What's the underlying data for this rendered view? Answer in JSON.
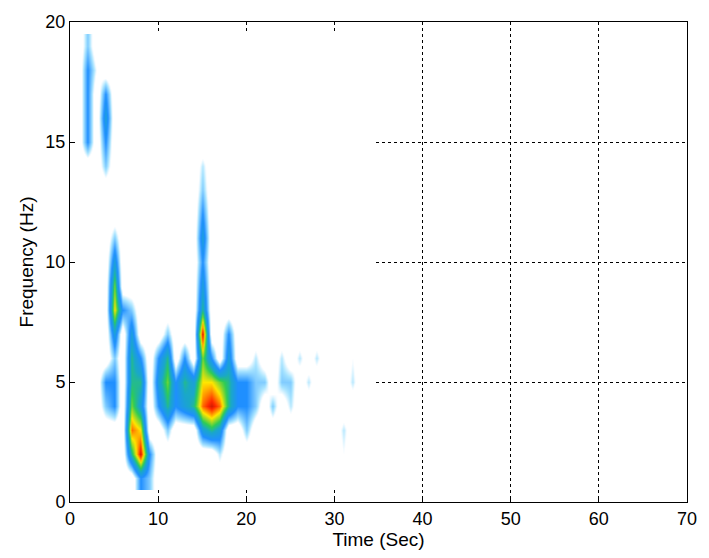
{
  "chart_data": {
    "type": "heatmap",
    "x_label": "Time (Sec)",
    "y_label": "Frequency (Hz)",
    "xlim": [
      0,
      70
    ],
    "ylim": [
      0,
      20
    ],
    "xticks": [
      0,
      10,
      20,
      30,
      40,
      50,
      60,
      70
    ],
    "yticks": [
      0,
      5,
      10,
      15,
      20
    ],
    "grid": true,
    "zlim": [
      0,
      1
    ],
    "cells": {
      "x": [
        1,
        2,
        3,
        4,
        5,
        6,
        7,
        8,
        9,
        10,
        11,
        12,
        13,
        14,
        15,
        16,
        17,
        18,
        19,
        20,
        21,
        22,
        23,
        24,
        25,
        26,
        27,
        28,
        29,
        30,
        31,
        32,
        33,
        34
      ],
      "y": [
        1,
        2,
        3,
        4,
        5,
        6,
        7,
        8,
        9,
        10,
        11,
        12,
        13,
        14,
        15,
        16,
        17,
        18,
        19
      ],
      "z": [
        [
          0,
          0,
          0,
          0,
          0,
          0,
          0,
          0.3,
          0.2,
          0,
          0,
          0,
          0,
          0,
          0,
          0,
          0,
          0,
          0,
          0,
          0,
          0,
          0,
          0,
          0,
          0,
          0,
          0,
          0,
          0,
          0,
          0,
          0,
          0
        ],
        [
          0,
          0,
          0,
          0,
          0,
          0,
          0.5,
          0.9,
          0.3,
          0,
          0,
          0,
          0,
          0,
          0,
          0,
          0.15,
          0,
          0,
          0,
          0,
          0.1,
          0,
          0,
          0,
          0,
          0,
          0,
          0,
          0,
          0.1,
          0,
          0,
          0
        ],
        [
          0,
          0,
          0,
          0,
          0,
          0,
          0.8,
          0.7,
          0,
          0,
          0.2,
          0,
          0,
          0,
          0.4,
          0.5,
          0.4,
          0,
          0,
          0.2,
          0,
          0,
          0,
          0,
          0,
          0,
          0,
          0,
          0,
          0,
          0.15,
          0,
          0,
          0
        ],
        [
          0,
          0,
          0,
          0.2,
          0.3,
          0,
          0.6,
          0.4,
          0,
          0.3,
          0.5,
          0.3,
          0.4,
          0.5,
          0.8,
          0.9,
          0.8,
          0.5,
          0.3,
          0.3,
          0.2,
          0,
          0.2,
          0,
          0.15,
          0,
          0,
          0,
          0,
          0,
          0,
          0,
          0,
          0
        ],
        [
          0,
          0,
          0,
          0.3,
          0.3,
          0,
          0.5,
          0.5,
          0,
          0.4,
          0.6,
          0.3,
          0.5,
          0.4,
          0.7,
          0.7,
          0.6,
          0.5,
          0.3,
          0.3,
          0.2,
          0.2,
          0,
          0.2,
          0.2,
          0,
          0.15,
          0,
          0,
          0.1,
          0,
          0.15,
          0,
          0
        ],
        [
          0,
          0,
          0,
          0,
          0.2,
          0,
          0.5,
          0.3,
          0,
          0.3,
          0.5,
          0,
          0.3,
          0,
          0.6,
          0.3,
          0,
          0.4,
          0,
          0,
          0.15,
          0,
          0,
          0.15,
          0,
          0.15,
          0,
          0.15,
          0,
          0,
          0,
          0.1,
          0,
          0
        ],
        [
          0,
          0,
          0,
          0,
          0.4,
          0,
          0.4,
          0,
          0,
          0,
          0.2,
          0,
          0,
          0,
          0.9,
          0,
          0,
          0.3,
          0,
          0,
          0,
          0,
          0,
          0,
          0,
          0,
          0,
          0,
          0,
          0,
          0,
          0,
          0,
          0
        ],
        [
          0,
          0,
          0,
          0,
          0.7,
          0.3,
          0.2,
          0,
          0,
          0,
          0,
          0,
          0,
          0,
          0.5,
          0,
          0,
          0,
          0,
          0,
          0,
          0,
          0,
          0,
          0,
          0,
          0,
          0,
          0,
          0,
          0,
          0,
          0,
          0
        ],
        [
          0,
          0,
          0,
          0,
          0.6,
          0,
          0,
          0,
          0,
          0,
          0,
          0,
          0,
          0,
          0.4,
          0,
          0,
          0,
          0,
          0,
          0,
          0,
          0,
          0,
          0,
          0,
          0,
          0,
          0,
          0,
          0,
          0,
          0,
          0
        ],
        [
          0,
          0,
          0,
          0,
          0.4,
          0,
          0,
          0,
          0,
          0,
          0,
          0,
          0,
          0,
          0.3,
          0,
          0,
          0,
          0,
          0,
          0,
          0,
          0,
          0,
          0,
          0,
          0,
          0,
          0,
          0,
          0,
          0,
          0,
          0
        ],
        [
          0,
          0,
          0,
          0,
          0.2,
          0,
          0,
          0,
          0,
          0,
          0,
          0,
          0,
          0,
          0.4,
          0,
          0,
          0,
          0,
          0,
          0,
          0,
          0,
          0,
          0,
          0,
          0,
          0,
          0,
          0,
          0,
          0,
          0,
          0
        ],
        [
          0,
          0,
          0,
          0,
          0,
          0,
          0,
          0,
          0,
          0,
          0,
          0,
          0,
          0,
          0.3,
          0,
          0,
          0,
          0,
          0,
          0,
          0,
          0,
          0,
          0,
          0,
          0,
          0,
          0,
          0,
          0,
          0,
          0,
          0
        ],
        [
          0,
          0,
          0,
          0,
          0,
          0,
          0,
          0.1,
          0,
          0,
          0,
          0,
          0,
          0,
          0.2,
          0,
          0,
          0,
          0,
          0,
          0,
          0,
          0,
          0,
          0,
          0,
          0,
          0,
          0,
          0,
          0,
          0,
          0,
          0
        ],
        [
          0,
          0,
          0,
          0.2,
          0,
          0,
          0,
          0,
          0,
          0,
          0,
          0,
          0,
          0,
          0.15,
          0,
          0,
          0,
          0,
          0,
          0,
          0,
          0,
          0,
          0,
          0,
          0,
          0,
          0,
          0,
          0,
          0,
          0,
          0
        ],
        [
          0,
          0.3,
          0,
          0.3,
          0,
          0,
          0,
          0,
          0,
          0,
          0,
          0,
          0,
          0,
          0,
          0,
          0,
          0,
          0,
          0,
          0,
          0,
          0,
          0,
          0,
          0,
          0,
          0,
          0,
          0,
          0,
          0,
          0,
          0
        ],
        [
          0,
          0.3,
          0,
          0.4,
          0,
          0,
          0,
          0,
          0,
          0,
          0,
          0,
          0,
          0,
          0,
          0,
          0,
          0,
          0,
          0,
          0,
          0,
          0,
          0,
          0,
          0,
          0,
          0,
          0,
          0,
          0,
          0,
          0,
          0
        ],
        [
          0,
          0.3,
          0,
          0.3,
          0,
          0,
          0,
          0,
          0,
          0,
          0,
          0,
          0,
          0,
          0,
          0,
          0,
          0,
          0,
          0,
          0,
          0,
          0,
          0,
          0,
          0,
          0,
          0,
          0,
          0,
          0,
          0,
          0,
          0
        ],
        [
          0,
          0.3,
          0.1,
          0,
          0,
          0,
          0,
          0,
          0,
          0,
          0,
          0,
          0,
          0,
          0,
          0,
          0,
          0,
          0,
          0,
          0,
          0,
          0,
          0,
          0,
          0,
          0,
          0,
          0,
          0,
          0,
          0,
          0,
          0
        ],
        [
          0,
          0.2,
          0,
          0,
          0,
          0,
          0,
          0,
          0,
          0,
          0,
          0,
          0,
          0,
          0,
          0,
          0,
          0,
          0,
          0,
          0,
          0,
          0,
          0,
          0,
          0,
          0,
          0,
          0,
          0,
          0,
          0,
          0,
          0
        ]
      ]
    }
  }
}
